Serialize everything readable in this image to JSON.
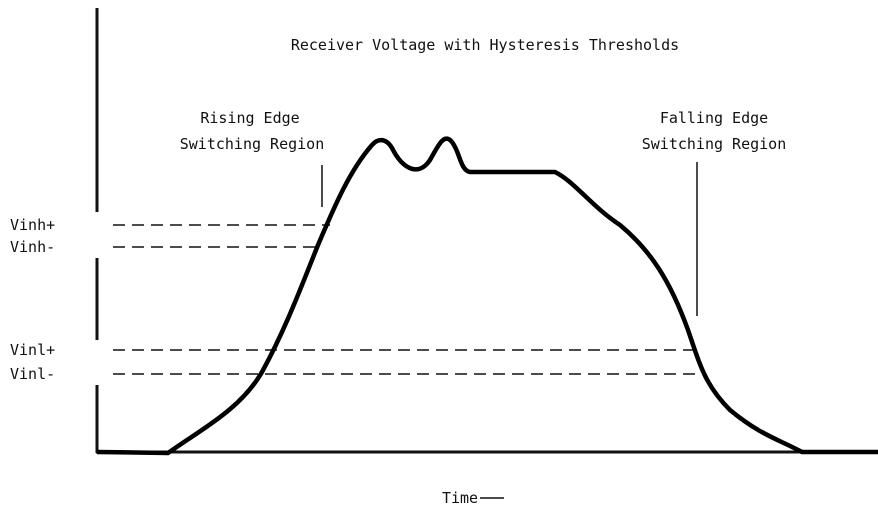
{
  "title": "Receiver Voltage with Hysteresis Thresholds",
  "annotations": [
    {
      "lines": [
        "Rising Edge",
        "Switching Region"
      ]
    },
    {
      "lines": [
        "Falling Edge",
        "Switching Region"
      ]
    }
  ],
  "thresholds": [
    "Vinh+",
    "Vinh-",
    "Vinl+",
    "Vinl-"
  ],
  "x_axis_label": "Time"
}
